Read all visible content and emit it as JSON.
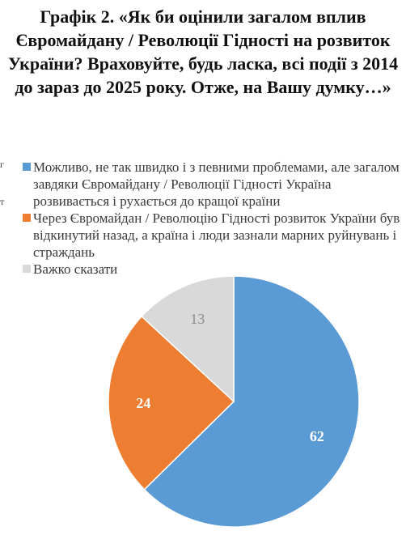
{
  "chart_data": {
    "type": "pie",
    "title": "Графік 2. «Як би оцінили загалом вплив Євромайдану / Революції Гідності на розвиток України? Враховуйте, будь ласка, всі події з 2014 до зараз до 2025 року. Отже, на Вашу думку…»",
    "legend_position": "top",
    "slices": [
      {
        "label": "Можливо, не так швидко і з певними проблемами, але загалом завдяки Євромайдану / Революції Гідності Україна розвивається і рухається до кращої країни",
        "value": 62,
        "color": "#5b9bd5"
      },
      {
        "label": "Через Євромайдан / Революцію Гідності розвиток України був відкинутий назад, а країна і люди зазнали марних руйнувань і страждань",
        "value": 24,
        "color": "#ed7d31"
      },
      {
        "label": "Важко сказати",
        "value": 13,
        "color": "#d9d9d9"
      }
    ],
    "label_colors": [
      "#ffffff",
      "#ffffff",
      "#8c8c8c"
    ]
  },
  "edge_fragments": [
    "г",
    "т"
  ]
}
